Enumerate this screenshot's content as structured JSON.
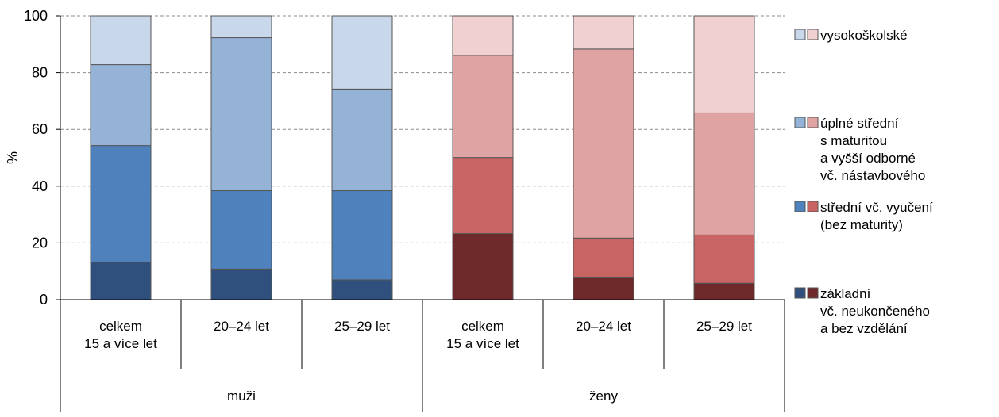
{
  "chart_data": {
    "type": "bar",
    "stacked": true,
    "ylabel": "%",
    "ylim": [
      0,
      100
    ],
    "yticks": [
      0,
      20,
      40,
      60,
      80,
      100
    ],
    "grid": true,
    "legend_position": "right",
    "groups": [
      {
        "label": "muži",
        "colors": [
          "#2f4f7c",
          "#4f81bd",
          "#95b3d7",
          "#c9d7ea"
        ]
      },
      {
        "label": "ženy",
        "colors": [
          "#6e2a2b",
          "#c96464",
          "#dfa3a3",
          "#f0d0d1"
        ]
      }
    ],
    "categories": [
      {
        "group": 0,
        "label_lines": [
          "celkem",
          "15 a více let"
        ]
      },
      {
        "group": 0,
        "label_lines": [
          "20–24 let"
        ]
      },
      {
        "group": 0,
        "label_lines": [
          "25–29 let"
        ]
      },
      {
        "group": 1,
        "label_lines": [
          "celkem",
          "15 a více let"
        ]
      },
      {
        "group": 1,
        "label_lines": [
          "20–24 let"
        ]
      },
      {
        "group": 1,
        "label_lines": [
          "25–29 let"
        ]
      }
    ],
    "series": [
      {
        "name_lines": [
          "základní",
          "vč. neukončeného",
          "a bez vzdělání"
        ],
        "values": [
          13.2,
          10.8,
          7.0,
          23.3,
          7.7,
          5.8
        ]
      },
      {
        "name_lines": [
          "střední vč. vyučení",
          "(bez maturity)"
        ],
        "values": [
          41.1,
          27.6,
          31.4,
          26.8,
          14.0,
          17.0
        ]
      },
      {
        "name_lines": [
          "úplné střední",
          "s maturitou",
          "a vyšší odborné",
          "vč. nástavbového"
        ],
        "values": [
          28.5,
          53.9,
          35.8,
          36.0,
          66.6,
          43.0
        ]
      },
      {
        "name_lines": [
          "vysokoškolské"
        ],
        "values": [
          17.2,
          7.7,
          25.8,
          13.9,
          11.7,
          34.2
        ]
      }
    ]
  }
}
